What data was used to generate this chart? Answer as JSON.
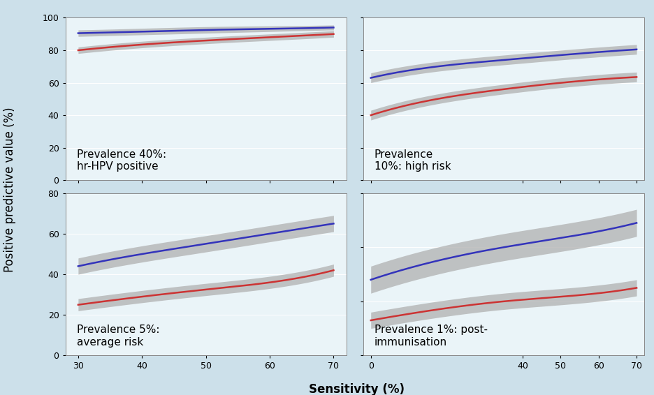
{
  "panels": [
    {
      "label": "Prevalence 40%:\nhr-HPV positive",
      "prevalence": 0.4,
      "x_start": 30,
      "x_end": 70,
      "xlim": [
        28,
        72
      ],
      "ylim": [
        0,
        100
      ],
      "yticks": [
        0,
        20,
        40,
        60,
        80,
        100
      ],
      "xticks": [
        30,
        40,
        50,
        60,
        70
      ],
      "blue_y": [
        90.5,
        91.5,
        92.5,
        93.2,
        94.0
      ],
      "blue_lo": [
        88.5,
        89.5,
        90.5,
        91.5,
        92.5
      ],
      "blue_hi": [
        92.5,
        93.5,
        94.5,
        95.0,
        95.5
      ],
      "red_y": [
        80.0,
        83.5,
        86.0,
        88.0,
        90.0
      ],
      "red_lo": [
        78.0,
        81.5,
        84.0,
        86.0,
        88.0
      ],
      "red_hi": [
        82.0,
        85.5,
        88.0,
        90.0,
        92.0
      ]
    },
    {
      "label": "Prevalence\n10%: high risk",
      "prevalence": 0.1,
      "x_start": 0,
      "x_end": 70,
      "xlim": [
        -2,
        72
      ],
      "ylim": [
        0,
        100
      ],
      "yticks": [
        0,
        20,
        40,
        60,
        80,
        100
      ],
      "xticks": [
        0,
        40,
        50,
        60,
        70
      ],
      "blue_y": [
        63.0,
        70.0,
        74.0,
        77.5,
        80.5
      ],
      "blue_lo": [
        60.0,
        67.0,
        71.0,
        74.5,
        77.5
      ],
      "blue_hi": [
        66.0,
        73.0,
        77.0,
        80.5,
        83.5
      ],
      "red_y": [
        40.0,
        50.0,
        56.0,
        60.5,
        63.5
      ],
      "red_lo": [
        37.0,
        47.0,
        53.0,
        57.5,
        60.5
      ],
      "red_hi": [
        43.0,
        53.0,
        59.0,
        63.5,
        66.5
      ]
    },
    {
      "label": "Prevalence 5%:\naverage risk",
      "prevalence": 0.05,
      "x_start": 30,
      "x_end": 70,
      "xlim": [
        28,
        72
      ],
      "ylim": [
        0,
        80
      ],
      "yticks": [
        0,
        20,
        40,
        60,
        80
      ],
      "xticks": [
        30,
        40,
        50,
        60,
        70
      ],
      "blue_y": [
        44.0,
        50.0,
        55.0,
        60.0,
        65.0
      ],
      "blue_lo": [
        40.0,
        46.0,
        51.0,
        56.0,
        61.0
      ],
      "blue_hi": [
        48.0,
        54.0,
        59.0,
        64.0,
        69.0
      ],
      "red_y": [
        25.0,
        29.0,
        32.5,
        36.0,
        42.0
      ],
      "red_lo": [
        22.0,
        26.0,
        29.5,
        33.0,
        39.0
      ],
      "red_hi": [
        28.0,
        32.0,
        35.5,
        39.0,
        45.0
      ]
    },
    {
      "label": "Prevalence 1%: post-\nimmunisation",
      "prevalence": 0.01,
      "x_start": 0,
      "x_end": 70,
      "xlim": [
        -2,
        72
      ],
      "ylim": [
        0,
        30
      ],
      "yticks": [
        0,
        10,
        20,
        30
      ],
      "xticks": [
        0,
        40,
        50,
        60,
        70
      ],
      "blue_y": [
        14.0,
        17.5,
        20.0,
        22.0,
        24.5
      ],
      "blue_lo": [
        11.5,
        15.0,
        17.5,
        19.5,
        22.0
      ],
      "blue_hi": [
        16.5,
        20.0,
        22.5,
        24.5,
        27.0
      ],
      "red_y": [
        6.5,
        8.5,
        10.0,
        11.0,
        12.5
      ],
      "red_lo": [
        5.0,
        7.0,
        8.5,
        9.5,
        11.0
      ],
      "red_hi": [
        8.0,
        10.0,
        11.5,
        12.5,
        14.0
      ]
    }
  ],
  "blue_color": "#3333bb",
  "red_color": "#cc3333",
  "ci_color": "#b0b0b0",
  "bg_color": "#eaf4f8",
  "outer_bg": "#cce0ea",
  "line_width": 1.8,
  "ylabel": "Positive predictive value (%)",
  "xlabel": "Sensitivity (%)",
  "label_fontsize": 11,
  "axis_fontsize": 12,
  "tick_fontsize": 9
}
